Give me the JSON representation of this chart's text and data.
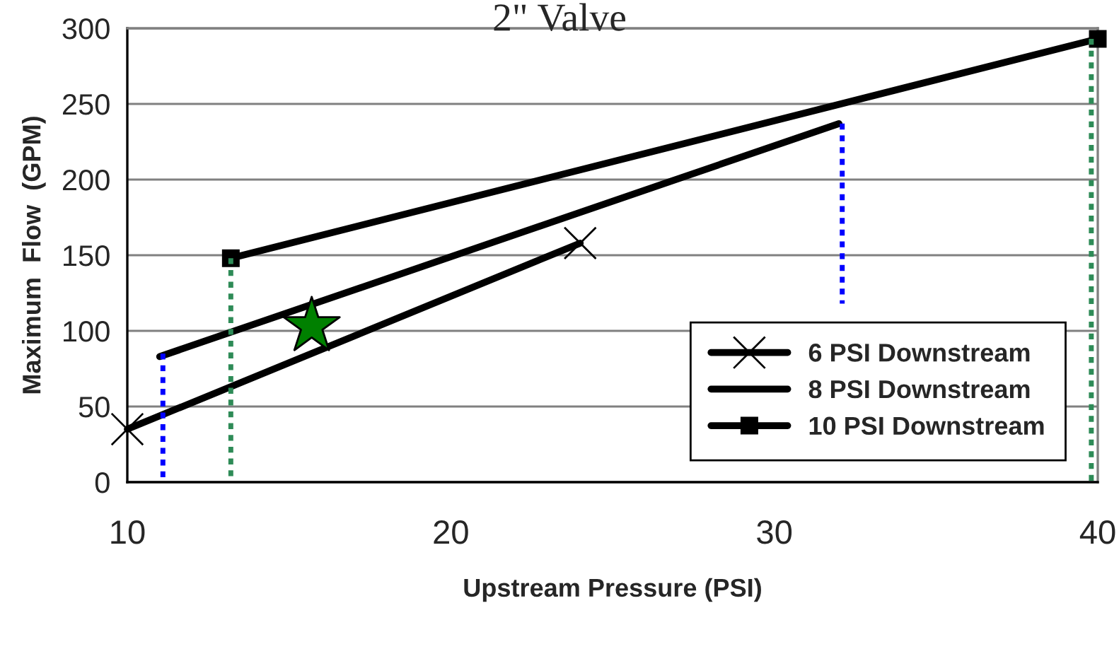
{
  "chart_data": {
    "type": "line",
    "title": "2\" Valve",
    "xlabel": "Upstream Pressure (PSI)",
    "ylabel": "Maximum  Flow  (GPM)",
    "xlim": [
      10,
      40
    ],
    "xticks": [
      10,
      20,
      30,
      40
    ],
    "ylim": [
      0,
      300
    ],
    "yticks": [
      0,
      50,
      100,
      150,
      200,
      250,
      300
    ],
    "grid": "y",
    "legend": "bottom right",
    "series": [
      {
        "name": "6 PSI Downstream",
        "color": "#000000",
        "marker": "cross",
        "x": [
          10,
          24
        ],
        "values": [
          35,
          158
        ]
      },
      {
        "name": "8 PSI Downstream",
        "color": "#000000",
        "marker": "none",
        "x": [
          11,
          32
        ],
        "values": [
          83,
          237
        ]
      },
      {
        "name": "10 PSI Downstream",
        "color": "#000000",
        "marker": "square",
        "x": [
          13.2,
          40
        ],
        "values": [
          148,
          293
        ]
      },
      {
        "color": "#0000ff",
        "line_style": "dotted",
        "marker": "none",
        "x": [
          11.1,
          11.1
        ],
        "values": [
          0,
          85
        ]
      },
      {
        "color": "#0000ff",
        "line_style": "dotted",
        "marker": "none",
        "x": [
          32.1,
          32.1
        ],
        "values": [
          118,
          237
        ]
      },
      {
        "color": "#2e8b57",
        "line_style": "dotted",
        "marker": "none",
        "x": [
          13.2,
          13.2
        ],
        "values": [
          0,
          148
        ]
      },
      {
        "color": "#2e8b57",
        "line_style": "dotted",
        "marker": "none",
        "x": [
          39.8,
          39.8
        ],
        "values": [
          0,
          293
        ]
      },
      {
        "type": "scatter",
        "color": "#008000",
        "marker": "star",
        "x": [
          15.7
        ],
        "values": [
          103
        ]
      }
    ]
  }
}
